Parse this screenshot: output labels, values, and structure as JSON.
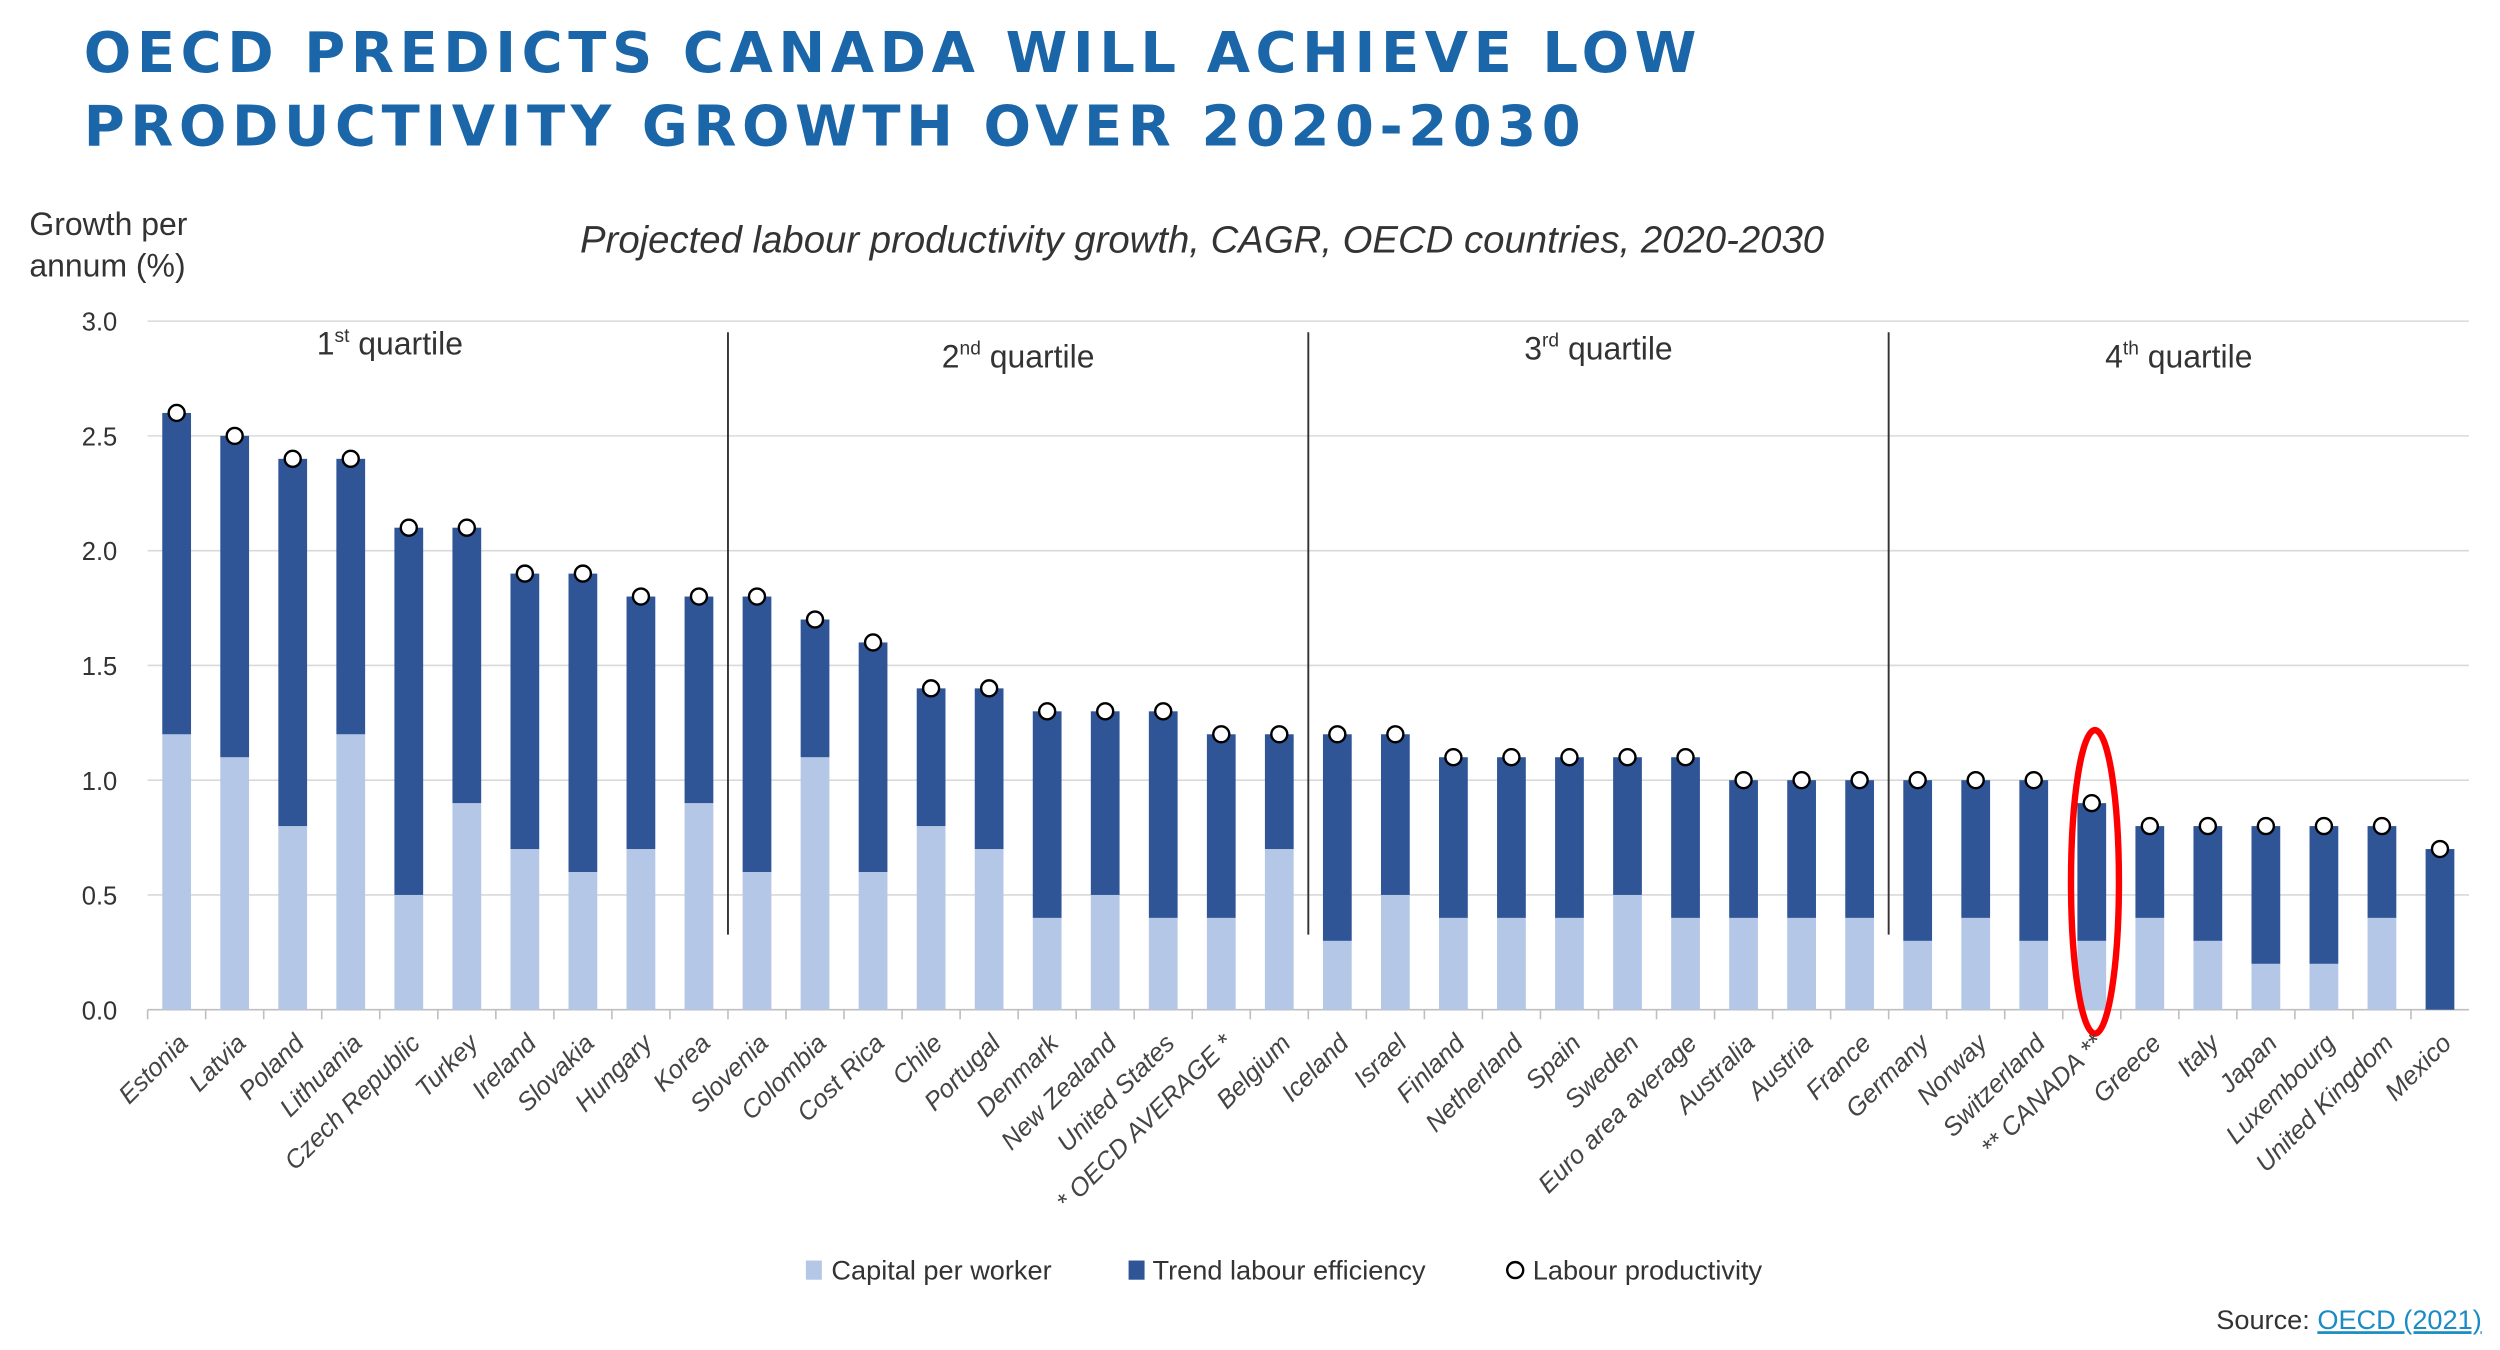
{
  "title_lines": [
    "OECD PREDICTS CANADA WILL ACHIEVE LOW",
    "PRODUCTIVITY GROWTH OVER 2020-2030"
  ],
  "chart_data": {
    "type": "bar",
    "stacked": true,
    "subtitle": "Projected labour productivity growth, CAGR, OECD countries, 2020-2030",
    "ylabel_lines": [
      "Growth per",
      "annum (%)"
    ],
    "ylim": [
      0,
      3.0
    ],
    "yticks": [
      "0.0",
      "0.5",
      "1.0",
      "1.5",
      "2.0",
      "2.5",
      "3.0"
    ],
    "grid": true,
    "legend_position": "bottom",
    "categories": [
      "Estonia",
      "Latvia",
      "Poland",
      "Lithuania",
      "Czech Republic",
      "Turkey",
      "Ireland",
      "Slovakia",
      "Hungary",
      "Korea",
      "Slovenia",
      "Colombia",
      "Cost Rica",
      "Chile",
      "Portugal",
      "Denmark",
      "New Zealand",
      "United States",
      "* OECD AVERAGE *",
      "Belgium",
      "Iceland",
      "Israel",
      "Finland",
      "Netherland",
      "Spain",
      "Sweden",
      "Euro area average",
      "Australia",
      "Austria",
      "France",
      "Germany",
      "Norway",
      "Switzerland",
      "** CANADA **",
      "Greece",
      "Italy",
      "Japan",
      "Luxembourg",
      "United Kingdom",
      "Mexico"
    ],
    "series": [
      {
        "name": "Capital per worker",
        "kind": "bar",
        "color": "#b4c7e7",
        "values": [
          1.2,
          1.1,
          0.8,
          1.2,
          0.5,
          0.9,
          0.7,
          0.6,
          0.7,
          0.9,
          0.6,
          1.1,
          0.6,
          0.8,
          0.7,
          0.4,
          0.5,
          0.4,
          0.4,
          0.7,
          0.3,
          0.5,
          0.4,
          0.4,
          0.4,
          0.5,
          0.4,
          0.4,
          0.4,
          0.4,
          0.3,
          0.4,
          0.3,
          0.3,
          0.4,
          0.3,
          0.2,
          0.2,
          0.4,
          0.0
        ]
      },
      {
        "name": "Trend labour efficiency",
        "kind": "bar",
        "color": "#2f5597",
        "values": [
          1.4,
          1.4,
          1.6,
          1.2,
          1.6,
          1.2,
          1.2,
          1.3,
          1.1,
          0.9,
          1.2,
          0.6,
          1.0,
          0.6,
          0.7,
          0.9,
          0.8,
          0.9,
          0.8,
          0.5,
          0.9,
          0.7,
          0.7,
          0.7,
          0.7,
          0.6,
          0.7,
          0.6,
          0.6,
          0.6,
          0.7,
          0.6,
          0.7,
          0.6,
          0.4,
          0.5,
          0.6,
          0.6,
          0.4,
          0.7
        ]
      },
      {
        "name": "Labour productivity",
        "kind": "marker",
        "color": "#ffffff",
        "values": [
          2.6,
          2.5,
          2.4,
          2.4,
          2.1,
          2.1,
          1.9,
          1.9,
          1.8,
          1.8,
          1.8,
          1.7,
          1.6,
          1.4,
          1.4,
          1.3,
          1.3,
          1.3,
          1.2,
          1.2,
          1.2,
          1.2,
          1.1,
          1.1,
          1.1,
          1.1,
          1.1,
          1.0,
          1.0,
          1.0,
          1.0,
          1.0,
          1.0,
          0.9,
          0.8,
          0.8,
          0.8,
          0.8,
          0.8,
          0.7
        ]
      }
    ],
    "quartiles": [
      {
        "num": "1",
        "sup": "st",
        "label": "quartile",
        "start": "Estonia"
      },
      {
        "num": "2",
        "sup": "nd",
        "label": "quartile",
        "start": "Slovenia"
      },
      {
        "num": "3",
        "sup": "rd",
        "label": "quartile",
        "start": "Iceland"
      },
      {
        "num": "4",
        "sup": "th",
        "label": "quartile",
        "start": "Germany"
      }
    ],
    "highlight": {
      "category": "** CANADA **",
      "color": "#ff0000"
    }
  },
  "source": {
    "prefix": "Source: ",
    "link": "OECD (2021)",
    "link_color": "#1a8bc4"
  },
  "colors": {
    "title": "#1a66a8"
  }
}
